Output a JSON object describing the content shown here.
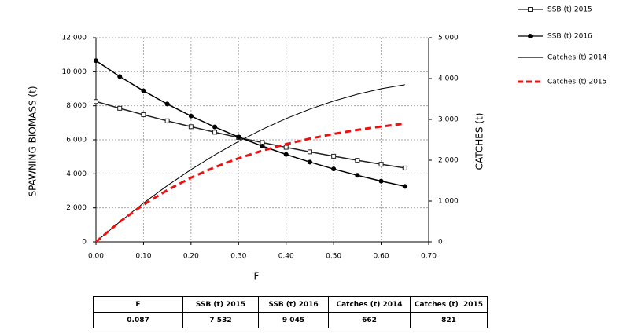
{
  "chart_data": {
    "type": "line",
    "xlabel": "F",
    "ylabel": "SPAWNING  BIOMASS (t)",
    "y2label": "CATCHES (t)",
    "x": [
      0,
      0.05,
      0.1,
      0.15,
      0.2,
      0.25,
      0.3,
      0.35,
      0.4,
      0.45,
      0.5,
      0.55,
      0.6,
      0.65
    ],
    "series": [
      {
        "name": "SSB (t) 2015",
        "color": "#222222",
        "marker": "square",
        "line_style": "solid",
        "values": [
          8250,
          7853,
          7475,
          7115,
          6772,
          6446,
          6136,
          5840,
          5559,
          5291,
          5036,
          4794,
          4563,
          4343
        ]
      },
      {
        "name": "SSB (t) 2016",
        "color": "#000000",
        "marker": "circle",
        "line_style": "solid",
        "values": [
          10650,
          9723,
          8877,
          8104,
          7399,
          6755,
          6167,
          5630,
          5140,
          4693,
          4284,
          3911,
          3571,
          3260
        ]
      },
      {
        "name": "Catches (t) 2014",
        "color": "#000000",
        "marker": "none",
        "line_style": "solid",
        "axis": "y2",
        "values": [
          0,
          491,
          950,
          1376,
          1770,
          2131,
          2460,
          2756,
          3020,
          3251,
          3450,
          3616,
          3750,
          3850
        ]
      },
      {
        "name": "Catches (t) 2015",
        "color": "#ee1111",
        "marker": "none",
        "line_style": "dashed",
        "axis": "y2",
        "values": [
          0,
          492,
          911,
          1267,
          1571,
          1829,
          2048,
          2234,
          2394,
          2529,
          2644,
          2742,
          2825,
          2896
        ]
      }
    ],
    "xlim": [
      0,
      0.7
    ],
    "xticks": [
      {
        "value": 0,
        "label": "0.00"
      },
      {
        "value": 0.1,
        "label": "0.10"
      },
      {
        "value": 0.2,
        "label": "0.20"
      },
      {
        "value": 0.3,
        "label": "0.30"
      },
      {
        "value": 0.4,
        "label": "0.40"
      },
      {
        "value": 0.5,
        "label": "0.50"
      },
      {
        "value": 0.6,
        "label": "0.60"
      },
      {
        "value": 0.7,
        "label": "0.70"
      }
    ],
    "ylim": [
      0,
      12000
    ],
    "yticks": [
      0,
      {
        "value": 2000,
        "label": "2 000"
      },
      {
        "value": 4000,
        "label": "4 000"
      },
      {
        "value": 6000,
        "label": "6 000"
      },
      {
        "value": 8000,
        "label": "8 000"
      },
      {
        "value": 10000,
        "label": "10 000"
      },
      {
        "value": 12000,
        "label": "12 000"
      }
    ],
    "y2lim": [
      0,
      5000
    ],
    "y2ticks": [
      0,
      {
        "value": 1000,
        "label": "1 000"
      },
      {
        "value": 2000,
        "label": "2 000"
      },
      {
        "value": 3000,
        "label": "3 000"
      },
      {
        "value": 4000,
        "label": "4 000"
      },
      {
        "value": 5000,
        "label": "5 000"
      }
    ],
    "grid": true,
    "legend": "right"
  },
  "table": {
    "header": [
      "F",
      "SSB (t) 2015",
      "SSB (t) 2016",
      "Catches (t) 2014",
      "Catches (t)  2015"
    ],
    "rows": [
      [
        "0.087",
        "7 532",
        "9 045",
        "662",
        "821"
      ]
    ]
  }
}
